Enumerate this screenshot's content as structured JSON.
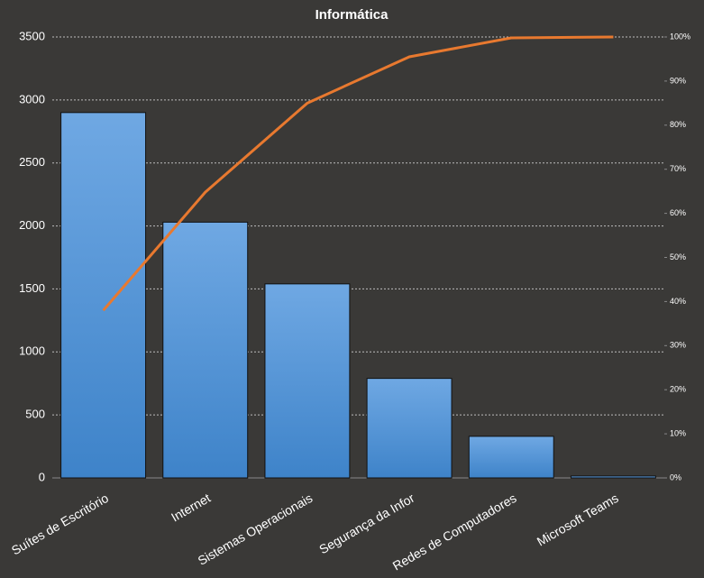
{
  "chart_data": {
    "type": "pareto",
    "title": "Informática",
    "categories": [
      "Suítes de Escritório",
      "Internet",
      "Sistemas Operacionais",
      "Segurança da Infor",
      "Redes de Computadores",
      "Microsoft Teams"
    ],
    "series": [
      {
        "type": "bar",
        "color": "#4a8fd4",
        "values": [
          2900,
          2030,
          1540,
          790,
          330,
          15
        ]
      },
      {
        "type": "line",
        "axis": "y2",
        "color": "#e8792f",
        "values": [
          38,
          64.8,
          85,
          95.5,
          99.8,
          100
        ]
      }
    ],
    "ylim": [
      0,
      3500
    ],
    "yticks": [
      0,
      500,
      1000,
      1500,
      2000,
      2500,
      3000,
      3500
    ],
    "y2lim": [
      0,
      100
    ],
    "y2ticks": [
      {
        "value": 0,
        "label": "0%"
      },
      {
        "value": 10,
        "label": "10%"
      },
      {
        "value": 20,
        "label": "20%"
      },
      {
        "value": 30,
        "label": "30%"
      },
      {
        "value": 40,
        "label": "40%"
      },
      {
        "value": 50,
        "label": "50%"
      },
      {
        "value": 60,
        "label": "60%"
      },
      {
        "value": 70,
        "label": "70%"
      },
      {
        "value": 80,
        "label": "80%"
      },
      {
        "value": 90,
        "label": "90%"
      },
      {
        "value": 100,
        "label": "100%"
      }
    ],
    "grid": true
  }
}
